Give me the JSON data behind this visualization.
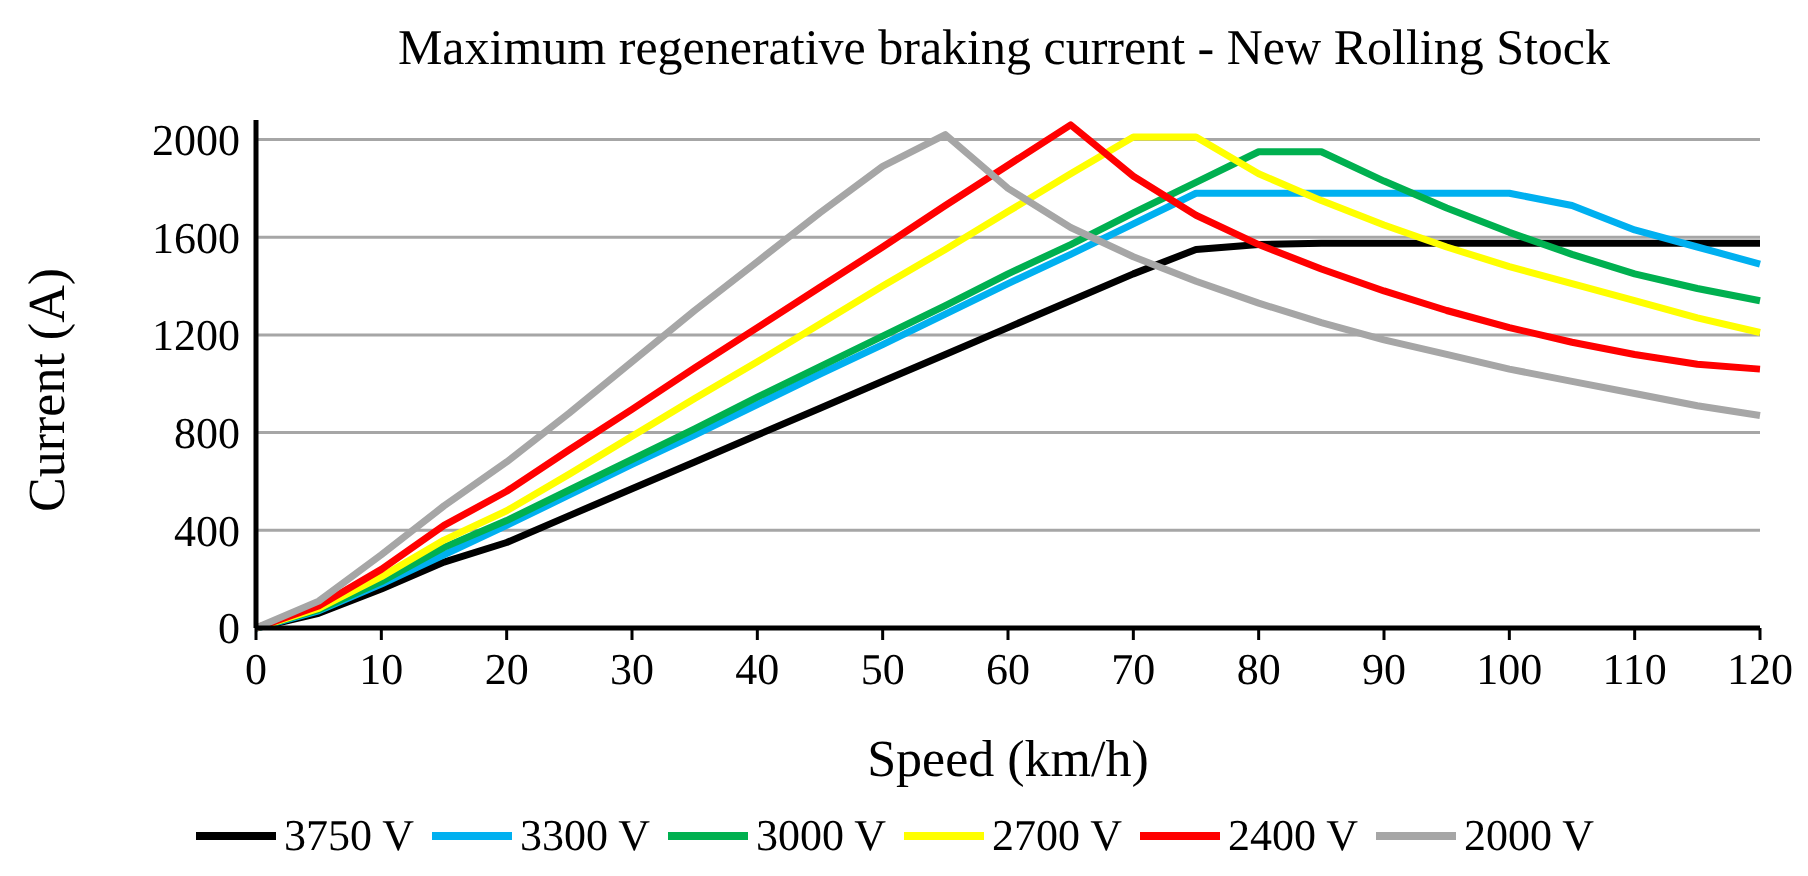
{
  "chart_data": {
    "type": "line",
    "title": "Maximum regenerative braking current - New Rolling Stock",
    "xlabel": "Speed (km/h)",
    "ylabel": "Current (A)",
    "x": [
      0,
      5,
      10,
      15,
      20,
      25,
      30,
      35,
      40,
      45,
      50,
      55,
      60,
      65,
      70,
      75,
      80,
      85,
      90,
      95,
      100,
      105,
      110,
      115,
      120
    ],
    "xlim": [
      0,
      120
    ],
    "xticks": [
      0,
      10,
      20,
      30,
      40,
      50,
      60,
      70,
      80,
      90,
      100,
      110,
      120
    ],
    "ylim": [
      0,
      2080
    ],
    "yticks": [
      0,
      400,
      800,
      1200,
      1600,
      2000
    ],
    "grid": "y",
    "legend": "bottom",
    "marker": "none",
    "line_style": "solid",
    "series": [
      {
        "name": "3750 V",
        "color": "#000000",
        "values": [
          0,
          60,
          160,
          270,
          350,
          460,
          570,
          680,
          790,
          900,
          1010,
          1120,
          1230,
          1340,
          1450,
          1550,
          1570,
          1575,
          1575,
          1575,
          1575,
          1575,
          1575,
          1575,
          1575
        ]
      },
      {
        "name": "3300 V",
        "color": "#00b0f0",
        "values": [
          0,
          70,
          180,
          300,
          420,
          545,
          670,
          790,
          915,
          1040,
          1160,
          1285,
          1410,
          1530,
          1655,
          1780,
          1780,
          1780,
          1780,
          1780,
          1780,
          1730,
          1630,
          1560,
          1490
        ]
      },
      {
        "name": "3000 V",
        "color": "#00b050",
        "values": [
          0,
          75,
          190,
          330,
          440,
          565,
          690,
          815,
          945,
          1070,
          1195,
          1320,
          1450,
          1570,
          1700,
          1825,
          1950,
          1950,
          1830,
          1720,
          1620,
          1530,
          1450,
          1390,
          1340
        ]
      },
      {
        "name": "2700 V",
        "color": "#ffff00",
        "values": [
          0,
          80,
          210,
          360,
          480,
          630,
          785,
          940,
          1090,
          1245,
          1400,
          1550,
          1705,
          1860,
          2010,
          2010,
          1860,
          1750,
          1650,
          1560,
          1480,
          1410,
          1340,
          1270,
          1210
        ]
      },
      {
        "name": "2400 V",
        "color": "#ff0000",
        "values": [
          0,
          90,
          240,
          420,
          560,
          730,
          895,
          1065,
          1230,
          1395,
          1560,
          1730,
          1895,
          2060,
          1850,
          1690,
          1570,
          1470,
          1380,
          1300,
          1230,
          1170,
          1120,
          1080,
          1060
        ]
      },
      {
        "name": "2000 V",
        "color": "#a6a6a6",
        "values": [
          0,
          110,
          300,
          500,
          680,
          880,
          1090,
          1300,
          1500,
          1700,
          1890,
          2020,
          1800,
          1640,
          1520,
          1420,
          1330,
          1250,
          1180,
          1120,
          1060,
          1010,
          960,
          910,
          870
        ]
      }
    ]
  }
}
